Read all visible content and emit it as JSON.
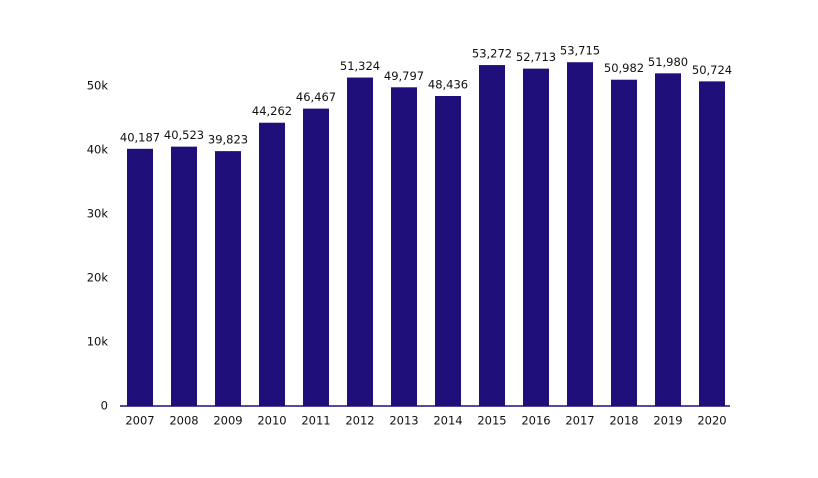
{
  "chart_data": {
    "type": "bar",
    "categories": [
      "2007",
      "2008",
      "2009",
      "2010",
      "2011",
      "2012",
      "2013",
      "2014",
      "2015",
      "2016",
      "2017",
      "2018",
      "2019",
      "2020"
    ],
    "values": [
      40187,
      40523,
      39823,
      44262,
      46467,
      51324,
      49797,
      48436,
      53272,
      52713,
      53715,
      50982,
      51980,
      50724
    ],
    "value_labels": [
      "40,187",
      "40,523",
      "39,823",
      "44,262",
      "46,467",
      "51,324",
      "49,797",
      "48,436",
      "53,272",
      "52,713",
      "53,715",
      "50,982",
      "51,980",
      "50,724"
    ],
    "color": "#1e0f7a",
    "ylim": [
      0,
      55000
    ],
    "yticks": [
      0,
      {
        "value": 10000,
        "label": "10k"
      },
      {
        "value": 20000,
        "label": "20k"
      },
      {
        "value": 30000,
        "label": "30k"
      },
      {
        "value": 40000,
        "label": "40k"
      },
      {
        "value": 50000,
        "label": "50k"
      }
    ],
    "grid": false
  }
}
